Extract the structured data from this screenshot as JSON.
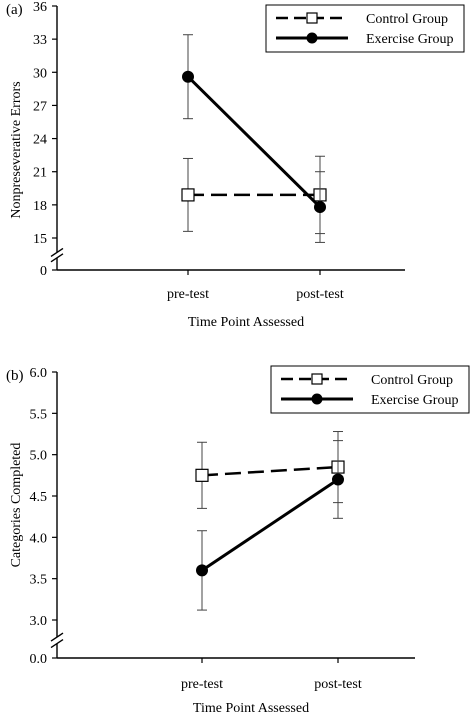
{
  "chart_data": [
    {
      "type": "line",
      "panel_label": "(a)",
      "categories": [
        "pre-test",
        "post-test"
      ],
      "xlabel": "Time Point Assessed",
      "ylabel": "Nonpreseverative Errors",
      "ylim": [
        15,
        36
      ],
      "axis_break": true,
      "yticks": [
        "36",
        "33",
        "30",
        "27",
        "24",
        "21",
        "18",
        "15",
        "0"
      ],
      "legend_position": "top-right",
      "series": [
        {
          "name": "Control Group",
          "style": "dashed",
          "marker": "open-square",
          "values": [
            18.9,
            18.9
          ],
          "error": [
            3.3,
            3.5
          ]
        },
        {
          "name": "Exercise Group",
          "style": "solid",
          "marker": "filled-circle",
          "values": [
            29.6,
            17.8
          ],
          "error": [
            3.8,
            3.2
          ]
        }
      ]
    },
    {
      "type": "line",
      "panel_label": "(b)",
      "categories": [
        "pre-test",
        "post-test"
      ],
      "xlabel": "Time Point Assessed",
      "ylabel": "Categories Completed",
      "ylim": [
        3.0,
        6.0
      ],
      "axis_break": true,
      "yticks": [
        "6.0",
        "5.5",
        "5.0",
        "4.5",
        "4.0",
        "3.5",
        "3.0",
        "0.0"
      ],
      "legend_position": "top-right",
      "series": [
        {
          "name": "Control Group",
          "style": "dashed",
          "marker": "open-square",
          "values": [
            4.75,
            4.85
          ],
          "error": [
            0.4,
            0.43
          ]
        },
        {
          "name": "Exercise Group",
          "style": "solid",
          "marker": "filled-circle",
          "values": [
            3.6,
            4.7
          ],
          "error": [
            0.48,
            0.47
          ]
        }
      ]
    }
  ]
}
